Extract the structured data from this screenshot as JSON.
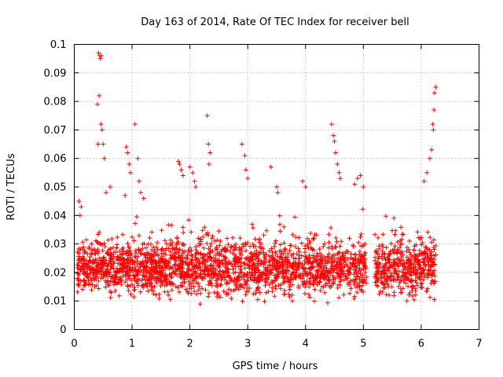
{
  "chart_data": {
    "type": "scatter",
    "title": "Day 163 of 2014, Rate Of TEC Index for receiver bell",
    "xlabel": "GPS time / hours",
    "ylabel": "ROTI / TECUs",
    "xlim": [
      0,
      7
    ],
    "ylim": [
      0,
      0.1
    ],
    "x_ticks": [
      0,
      1,
      2,
      3,
      4,
      5,
      6,
      7
    ],
    "x_tick_labels": [
      "0",
      "1",
      "2",
      "3",
      "4",
      "5",
      "6",
      "7"
    ],
    "y_ticks": [
      0,
      0.01,
      0.02,
      0.03,
      0.04,
      0.05,
      0.06,
      0.07,
      0.08,
      0.09,
      0.1
    ],
    "y_tick_labels": [
      "0",
      "0.01",
      "0.02",
      "0.03",
      "0.04",
      "0.05",
      "0.06",
      "0.07",
      "0.08",
      "0.09",
      "0.1"
    ],
    "grid": true,
    "marker": "plus",
    "color": "#ff0000",
    "series": [
      {
        "name": "ROTI",
        "note": "dense bulk of ~2500 points between 0.008 and 0.035 TECU spanning 0.05-6.25 h with a gap 5.05-5.2 h",
        "bulk": {
          "x_range": [
            0.05,
            6.25
          ],
          "y_range": [
            0.008,
            0.035
          ],
          "gap": [
            5.05,
            5.2
          ],
          "count": 2500
        },
        "x": [
          0.08,
          0.12,
          0.1,
          0.42,
          0.44,
          0.45,
          0.47,
          0.43,
          0.4,
          0.46,
          0.48,
          0.5,
          0.52,
          0.41,
          0.55,
          0.62,
          0.9,
          0.92,
          0.95,
          0.97,
          0.88,
          1.05,
          1.1,
          1.12,
          1.15,
          1.2,
          1.8,
          1.82,
          1.85,
          1.88,
          2.0,
          2.05,
          2.08,
          2.1,
          2.3,
          2.32,
          2.35,
          2.33,
          2.9,
          2.95,
          2.97,
          3.0,
          3.4,
          3.5,
          3.52,
          3.95,
          4.0,
          4.45,
          4.48,
          4.5,
          4.52,
          4.55,
          4.58,
          4.6,
          4.85,
          4.9,
          4.95,
          5.0,
          6.05,
          6.1,
          6.15,
          6.18,
          6.2,
          6.22,
          6.25,
          6.23,
          6.21
        ],
        "y": [
          0.045,
          0.043,
          0.04,
          0.097,
          0.096,
          0.095,
          0.096,
          0.082,
          0.079,
          0.072,
          0.07,
          0.065,
          0.06,
          0.065,
          0.048,
          0.05,
          0.064,
          0.062,
          0.058,
          0.055,
          0.047,
          0.072,
          0.06,
          0.052,
          0.048,
          0.046,
          0.059,
          0.058,
          0.056,
          0.054,
          0.057,
          0.055,
          0.052,
          0.05,
          0.075,
          0.065,
          0.062,
          0.058,
          0.065,
          0.061,
          0.056,
          0.053,
          0.057,
          0.05,
          0.048,
          0.052,
          0.05,
          0.072,
          0.068,
          0.066,
          0.062,
          0.058,
          0.055,
          0.053,
          0.051,
          0.053,
          0.054,
          0.05,
          0.052,
          0.055,
          0.06,
          0.063,
          0.072,
          0.077,
          0.085,
          0.083,
          0.07
        ]
      }
    ]
  }
}
